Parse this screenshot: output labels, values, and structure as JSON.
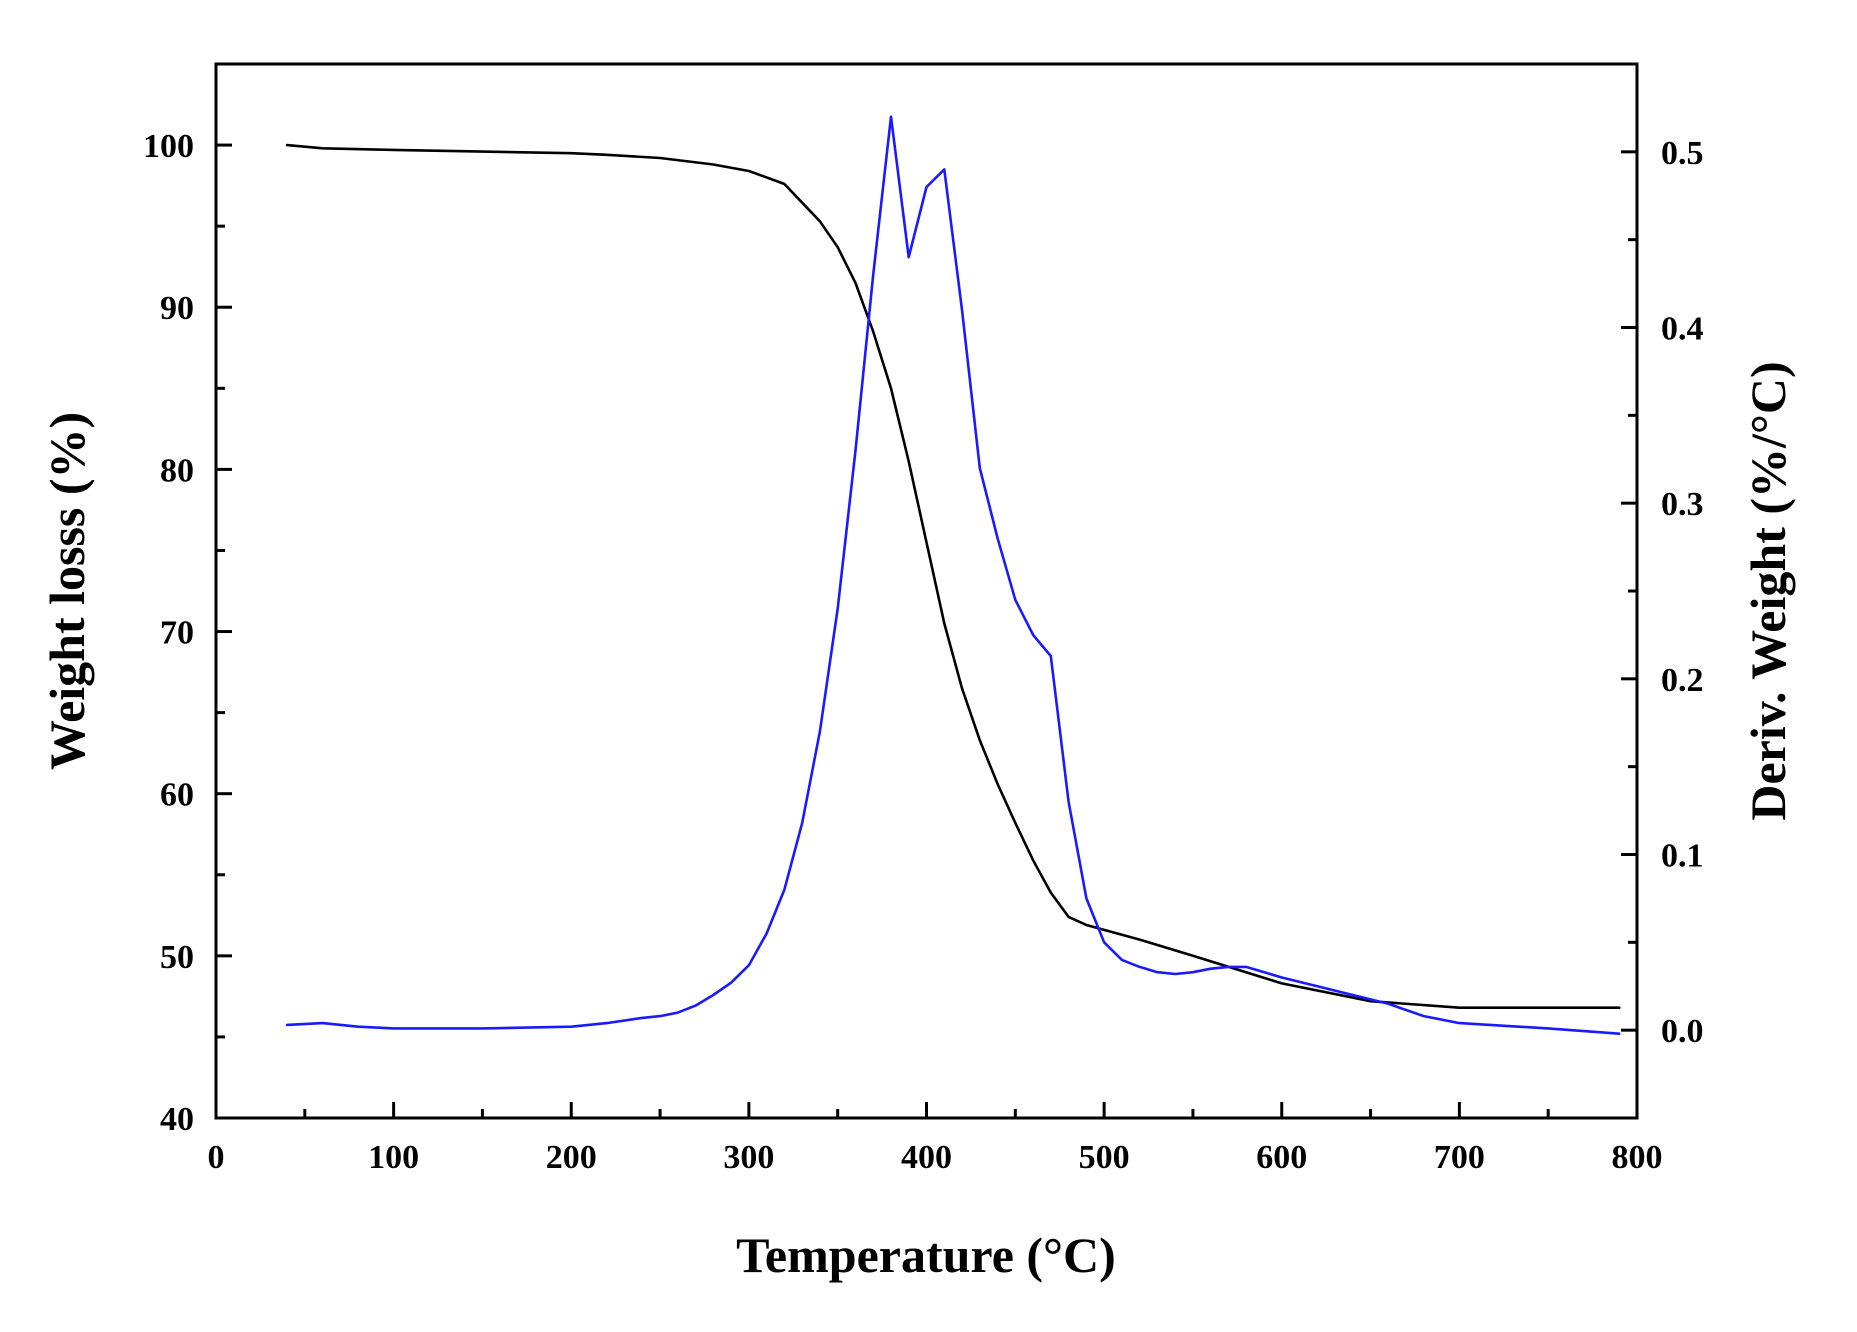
{
  "chart_data": {
    "type": "line",
    "xlabel": "Temperature (°C)",
    "ylabel_left": "Weight losss (%)",
    "ylabel_right": "Deriv. Weight (%/°C)",
    "xlim": [
      0,
      800
    ],
    "ylim_left": [
      40,
      105
    ],
    "ylim_right": [
      -0.05,
      0.55
    ],
    "x_ticks": [
      0,
      100,
      200,
      300,
      400,
      500,
      600,
      700,
      800
    ],
    "x_tick_labels": [
      "0",
      "100",
      "200",
      "300",
      "400",
      "500",
      "600",
      "700",
      "800"
    ],
    "y_left_ticks": [
      40,
      50,
      60,
      70,
      80,
      90,
      100
    ],
    "y_left_tick_labels": [
      "40",
      "50",
      "60",
      "70",
      "80",
      "90",
      "100"
    ],
    "y_right_ticks": [
      0.0,
      0.1,
      0.2,
      0.3,
      0.4,
      0.5
    ],
    "y_right_tick_labels": [
      "0.0",
      "0.1",
      "0.2",
      "0.3",
      "0.4",
      "0.5"
    ],
    "grid": false,
    "series": [
      {
        "axis": "left",
        "color": "#000000",
        "x": [
          40,
          60,
          100,
          150,
          200,
          220,
          250,
          280,
          300,
          320,
          340,
          350,
          360,
          370,
          380,
          390,
          400,
          410,
          420,
          430,
          440,
          450,
          460,
          470,
          480,
          490,
          500,
          520,
          550,
          600,
          650,
          700,
          750,
          790
        ],
        "y": [
          100,
          99.8,
          99.7,
          99.6,
          99.5,
          99.4,
          99.2,
          98.8,
          98.4,
          97.6,
          95.3,
          93.7,
          91.5,
          88.5,
          85.0,
          80.5,
          75.5,
          70.5,
          66.5,
          63.3,
          60.6,
          58.2,
          55.9,
          53.9,
          52.4,
          51.9,
          51.6,
          51.0,
          50.0,
          48.3,
          47.2,
          46.8,
          46.8,
          46.8
        ]
      },
      {
        "axis": "right",
        "color": "#1a1aff",
        "x": [
          40,
          60,
          80,
          100,
          150,
          200,
          220,
          240,
          250,
          260,
          270,
          280,
          290,
          300,
          310,
          320,
          330,
          340,
          350,
          360,
          370,
          380,
          390,
          400,
          410,
          420,
          430,
          440,
          450,
          460,
          470,
          480,
          490,
          500,
          510,
          520,
          530,
          540,
          550,
          560,
          570,
          580,
          600,
          620,
          640,
          660,
          680,
          700,
          750,
          790
        ],
        "y": [
          0.003,
          0.004,
          0.002,
          0.001,
          0.001,
          0.002,
          0.004,
          0.007,
          0.008,
          0.01,
          0.014,
          0.02,
          0.027,
          0.037,
          0.055,
          0.08,
          0.118,
          0.17,
          0.24,
          0.33,
          0.43,
          0.52,
          0.44,
          0.48,
          0.49,
          0.41,
          0.32,
          0.28,
          0.245,
          0.225,
          0.213,
          0.13,
          0.075,
          0.05,
          0.04,
          0.036,
          0.033,
          0.032,
          0.033,
          0.035,
          0.036,
          0.036,
          0.03,
          0.025,
          0.02,
          0.015,
          0.008,
          0.004,
          0.001,
          -0.002
        ]
      }
    ]
  }
}
